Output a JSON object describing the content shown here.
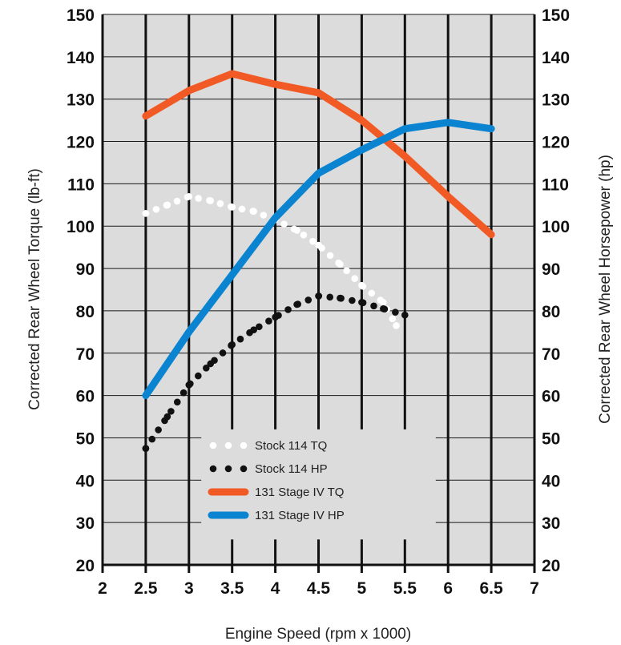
{
  "chart_data": {
    "type": "line",
    "xlabel": "Engine Speed (rpm x 1000)",
    "ylabel_left": "Corrected Rear Wheel Torque (lb-ft)",
    "ylabel_right": "Corrected Rear Wheel Horsepower (hp)",
    "xlim": [
      2,
      7
    ],
    "ylim": [
      20,
      150
    ],
    "x_ticks": [
      "2",
      "2.5",
      "3",
      "3.5",
      "4",
      "4.5",
      "5",
      "5.5",
      "6",
      "6.5",
      "7"
    ],
    "y_ticks": [
      "20",
      "30",
      "40",
      "50",
      "60",
      "70",
      "80",
      "90",
      "100",
      "110",
      "120",
      "130",
      "140",
      "150"
    ],
    "grid": true,
    "legend_position": "lower-center",
    "series": [
      {
        "name": "Stock 114 TQ",
        "style": "dotted",
        "color": "#ffffff",
        "points": [
          [
            2.5,
            103
          ],
          [
            2.75,
            105
          ],
          [
            3.0,
            107
          ],
          [
            3.25,
            106
          ],
          [
            3.5,
            104.5
          ],
          [
            3.75,
            103.5
          ],
          [
            4.0,
            101.5
          ],
          [
            4.25,
            99
          ],
          [
            4.5,
            95.5
          ],
          [
            4.75,
            91
          ],
          [
            5.0,
            86
          ],
          [
            5.25,
            82
          ],
          [
            5.4,
            76.5
          ]
        ]
      },
      {
        "name": "Stock 114 HP",
        "style": "dotted",
        "color": "#111111",
        "points": [
          [
            2.5,
            47.5
          ],
          [
            2.75,
            55
          ],
          [
            3.0,
            62.5
          ],
          [
            3.25,
            67.5
          ],
          [
            3.5,
            72
          ],
          [
            3.75,
            75.5
          ],
          [
            4.0,
            78.5
          ],
          [
            4.25,
            81.5
          ],
          [
            4.5,
            83.5
          ],
          [
            4.75,
            83
          ],
          [
            5.0,
            82
          ],
          [
            5.25,
            80.5
          ],
          [
            5.5,
            79
          ]
        ]
      },
      {
        "name": "131 Stage IV TQ",
        "style": "solid",
        "color": "#f15a24",
        "points": [
          [
            2.5,
            126
          ],
          [
            3.0,
            132
          ],
          [
            3.5,
            136
          ],
          [
            4.0,
            133.5
          ],
          [
            4.5,
            131.5
          ],
          [
            5.0,
            125
          ],
          [
            5.5,
            116.5
          ],
          [
            6.0,
            107
          ],
          [
            6.5,
            98
          ]
        ]
      },
      {
        "name": "131 Stage IV HP",
        "style": "solid",
        "color": "#0a84d0",
        "points": [
          [
            2.5,
            60
          ],
          [
            3.0,
            75
          ],
          [
            3.5,
            88.5
          ],
          [
            4.0,
            102
          ],
          [
            4.5,
            112.5
          ],
          [
            5.0,
            118
          ],
          [
            5.5,
            123
          ],
          [
            6.0,
            124.5
          ],
          [
            6.5,
            123
          ]
        ]
      }
    ]
  }
}
